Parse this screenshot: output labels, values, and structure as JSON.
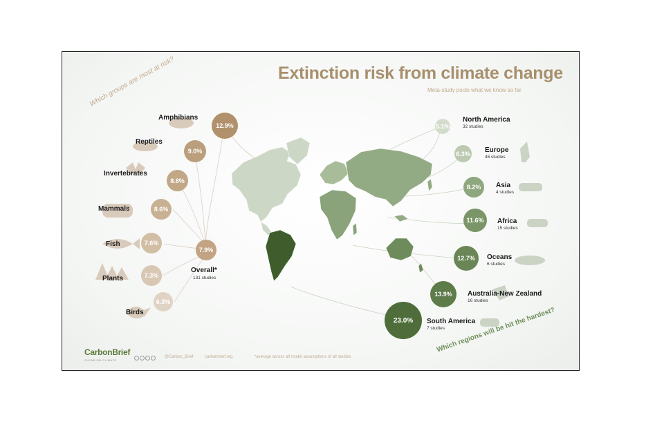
{
  "title": "Extinction risk from climate change",
  "subtitle": "Meta-study pools what we know so far",
  "groups_question": "Which groups are most at risk?",
  "regions_question": "Which regions will be hit the hardest?",
  "groups": [
    {
      "name": "Amphibians",
      "value": "12.9%",
      "icon": "frog-icon"
    },
    {
      "name": "Reptiles",
      "value": "9.0%",
      "icon": "lizard-icon"
    },
    {
      "name": "Invertebrates",
      "value": "8.8%",
      "icon": "butterfly-icon"
    },
    {
      "name": "Mammals",
      "value": "8.6%",
      "icon": "bear-icon"
    },
    {
      "name": "Fish",
      "value": "7.6%",
      "icon": "fish-icon"
    },
    {
      "name": "Plants",
      "value": "7.3%",
      "icon": "tree-icon"
    },
    {
      "name": "Birds",
      "value": "6.3%",
      "icon": "bird-icon"
    }
  ],
  "overall": {
    "name": "Overall*",
    "value": "7.9%",
    "studies": "131 studies"
  },
  "regions": [
    {
      "name": "North America",
      "value": "5.1%",
      "studies": "32 studies",
      "icon": "none"
    },
    {
      "name": "Europe",
      "value": "6.3%",
      "studies": "46 studies",
      "icon": "deer-icon"
    },
    {
      "name": "Asia",
      "value": "8.2%",
      "studies": "4 studies",
      "icon": "tiger-icon"
    },
    {
      "name": "Africa",
      "value": "11.6%",
      "studies": "15 studies",
      "icon": "lion-icon"
    },
    {
      "name": "Oceans",
      "value": "12.7%",
      "studies": "6 studies",
      "icon": "whale-icon"
    },
    {
      "name": "Australia-New Zealand",
      "value": "13.9%",
      "studies": "16 studies",
      "icon": "kangaroo-icon"
    },
    {
      "name": "South America",
      "value": "23.0%",
      "studies": "7 studies",
      "icon": "bear-icon"
    }
  ],
  "footer": {
    "logo": "CarbonBrief",
    "logo_tagline": "CLEAR ON CLIMATE",
    "twitter": "@Carbon_Brief",
    "site": "carbonbrief.org",
    "note": "*average across all model assumptions of all studies"
  },
  "colors": {
    "title": "#a8906d",
    "group_circle_dark": "#b0916b",
    "group_circle_light": "#ddd0c0",
    "region_circle_light": "#d3dccb",
    "region_circle_dark": "#4f6d3a",
    "map_land": "#c8d3c0",
    "map_highlight": "#3f5d2c"
  }
}
